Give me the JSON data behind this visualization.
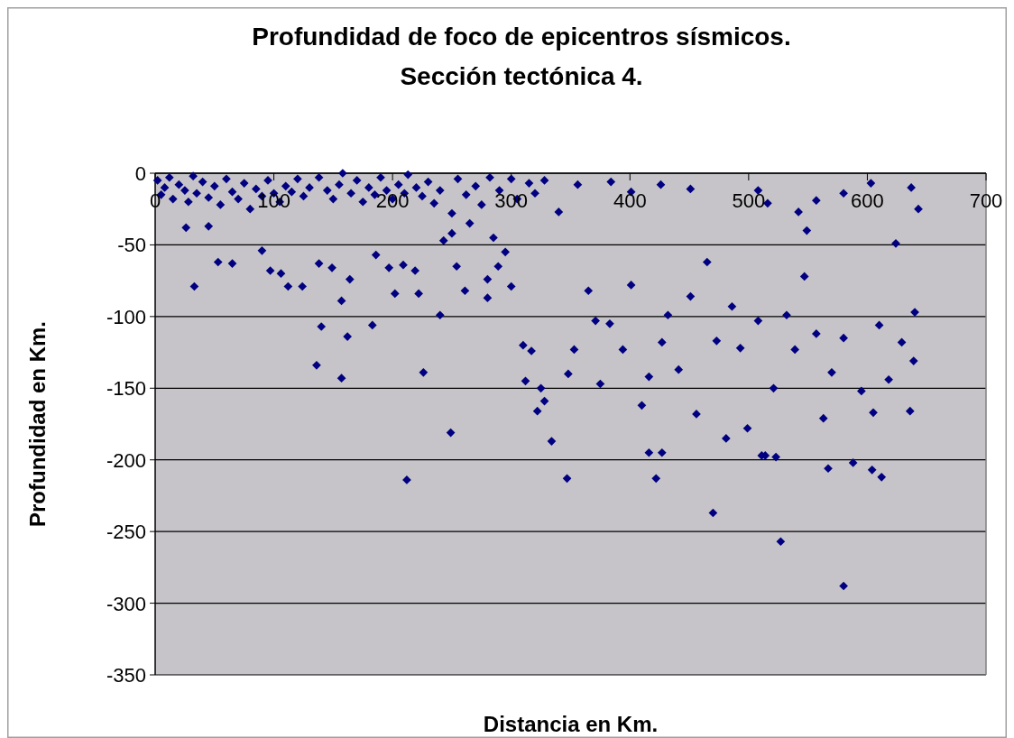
{
  "chart_data": {
    "type": "scatter",
    "title": "Profundidad de foco de epicentros sísmicos.\nSección tectónica 4.",
    "xlabel": "Distancia en Km.",
    "ylabel": "Profundidad en Km.",
    "xlim": [
      0,
      700
    ],
    "xticks": [
      0,
      100,
      200,
      300,
      400,
      500,
      600,
      700
    ],
    "ylim": [
      -350,
      0
    ],
    "yticks": [
      0,
      -50,
      -100,
      -150,
      -200,
      -250,
      -300,
      -350
    ],
    "grid": "y",
    "marker": "diamond",
    "series": [
      {
        "color": "#000080",
        "x": [
          2,
          5,
          8,
          12,
          15,
          20,
          25,
          28,
          32,
          35,
          40,
          45,
          50,
          55,
          60,
          65,
          70,
          75,
          80,
          85,
          90,
          95,
          100,
          105,
          110,
          115,
          120,
          125,
          130,
          138,
          145,
          150,
          155,
          158,
          165,
          170,
          175,
          180,
          185,
          190,
          195,
          200,
          205,
          210,
          213,
          220,
          225,
          230,
          235,
          240,
          250,
          255,
          262,
          270,
          275,
          282,
          290,
          300,
          305,
          315,
          320,
          328,
          26,
          250,
          265,
          285,
          243,
          33,
          53,
          65,
          45,
          90,
          97,
          106,
          112,
          124,
          136,
          140,
          138,
          149,
          157,
          162,
          157,
          164,
          183,
          186,
          197,
          219,
          202,
          209,
          222,
          226,
          212,
          240,
          249,
          261,
          254,
          280,
          280,
          295,
          300,
          289,
          310,
          317,
          325,
          322,
          334,
          328,
          312,
          348,
          353,
          365,
          371,
          375,
          383,
          394,
          401,
          410,
          416,
          427,
          432,
          441,
          451,
          456,
          465,
          473,
          481,
          486,
          493,
          499,
          508,
          514,
          521,
          527,
          532,
          539,
          547,
          557,
          563,
          570,
          580,
          580,
          588,
          595,
          605,
          610,
          618,
          624,
          629,
          636,
          640,
          639,
          470,
          347,
          422,
          612,
          604,
          567,
          511,
          523,
          416,
          427,
          637,
          580,
          603,
          508,
          516,
          426,
          451,
          384,
          356,
          542,
          549,
          557,
          340,
          401,
          643
        ],
        "values": [
          -5,
          -15,
          -10,
          -3,
          -18,
          -8,
          -12,
          -20,
          -2,
          -14,
          -6,
          -17,
          -9,
          -22,
          -4,
          -13,
          -18,
          -7,
          -25,
          -11,
          -16,
          -5,
          -14,
          -20,
          -9,
          -13,
          -4,
          -16,
          -10,
          -3,
          -12,
          -18,
          -8,
          0,
          -14,
          -5,
          -20,
          -10,
          -15,
          -3,
          -12,
          -18,
          -8,
          -14,
          -1,
          -10,
          -16,
          -6,
          -21,
          -12,
          -28,
          -4,
          -15,
          -9,
          -22,
          -3,
          -12,
          -4,
          -18,
          -7,
          -14,
          -5,
          -38,
          -42,
          -35,
          -45,
          -47,
          -79,
          -62,
          -63,
          -37,
          -54,
          -68,
          -70,
          -79,
          -79,
          -134,
          -107,
          -63,
          -66,
          -89,
          -114,
          -143,
          -74,
          -106,
          -57,
          -66,
          -68,
          -84,
          -64,
          -84,
          -139,
          -214,
          -99,
          -181,
          -82,
          -65,
          -74,
          -87,
          -55,
          -79,
          -65,
          -120,
          -124,
          -150,
          -166,
          -187,
          -159,
          -145,
          -140,
          -123,
          -82,
          -103,
          -147,
          -105,
          -123,
          -78,
          -162,
          -142,
          -118,
          -99,
          -137,
          -86,
          -168,
          -62,
          -117,
          -185,
          -93,
          -122,
          -178,
          -103,
          -197,
          -150,
          -257,
          -99,
          -123,
          -72,
          -112,
          -171,
          -139,
          -288,
          -115,
          -202,
          -152,
          -167,
          -106,
          -144,
          -49,
          -118,
          -166,
          -97,
          -131,
          -237,
          -213,
          -213,
          -212,
          -207,
          -206,
          -197,
          -198,
          -195,
          -195,
          -10,
          -14,
          -7,
          -12,
          -21,
          -8,
          -11,
          -6,
          -8,
          -27,
          -40,
          -19,
          -27,
          -13,
          -25
        ]
      }
    ]
  }
}
